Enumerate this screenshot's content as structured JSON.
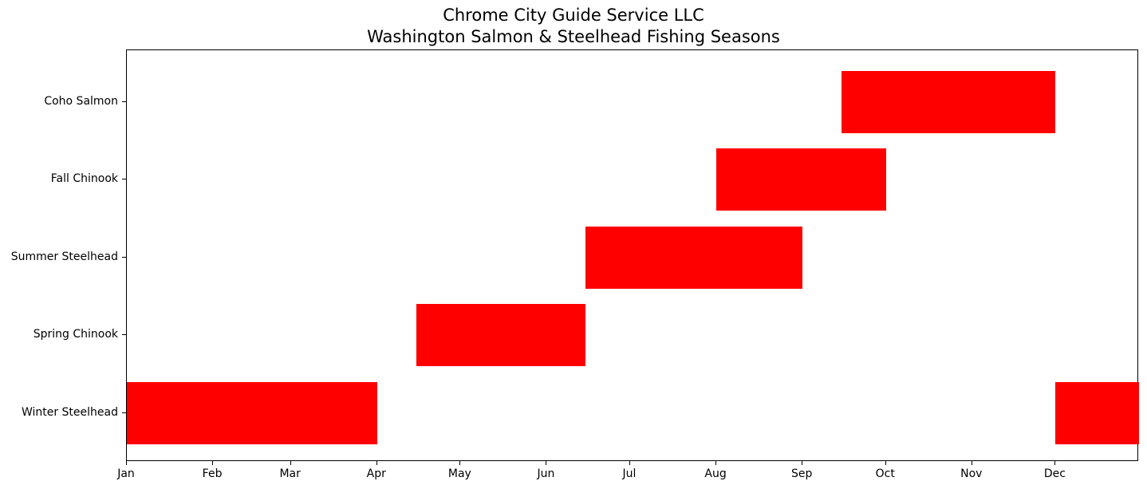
{
  "title": {
    "line1": "Chrome City Guide Service LLC",
    "line2": "Washington Salmon & Steelhead Fishing Seasons"
  },
  "chart_data": {
    "type": "bar",
    "orientation": "horizontal-gantt",
    "title": "Chrome City Guide Service LLC\nWashington Salmon & Steelhead Fishing Seasons",
    "xlabel": "",
    "ylabel": "",
    "x_unit": "day_of_year",
    "xlim": [
      0,
      364
    ],
    "grid": false,
    "legend": null,
    "bar_color": "#ff0000",
    "x_ticks": [
      {
        "label": "Jan",
        "day": 0
      },
      {
        "label": "Feb",
        "day": 31
      },
      {
        "label": "Mar",
        "day": 59
      },
      {
        "label": "Apr",
        "day": 90
      },
      {
        "label": "May",
        "day": 120
      },
      {
        "label": "Jun",
        "day": 151
      },
      {
        "label": "Jul",
        "day": 181
      },
      {
        "label": "Aug",
        "day": 212
      },
      {
        "label": "Sep",
        "day": 243
      },
      {
        "label": "Oct",
        "day": 273
      },
      {
        "label": "Nov",
        "day": 304
      },
      {
        "label": "Dec",
        "day": 334
      }
    ],
    "categories": [
      "Winter Steelhead",
      "Spring Chinook",
      "Summer Steelhead",
      "Fall Chinook",
      "Coho Salmon"
    ],
    "series": [
      {
        "name": "Winter Steelhead",
        "segments": [
          {
            "start": "Jan 1",
            "end": "Apr 1",
            "start_day": 0,
            "end_day": 90
          },
          {
            "start": "Dec 1",
            "end": "Dec 31",
            "start_day": 334,
            "end_day": 364
          }
        ]
      },
      {
        "name": "Spring Chinook",
        "segments": [
          {
            "start": "Apr 15",
            "end": "Jun 15",
            "start_day": 104,
            "end_day": 165
          }
        ]
      },
      {
        "name": "Summer Steelhead",
        "segments": [
          {
            "start": "Jun 15",
            "end": "Sep 1",
            "start_day": 165,
            "end_day": 243
          }
        ]
      },
      {
        "name": "Fall Chinook",
        "segments": [
          {
            "start": "Aug 1",
            "end": "Oct 1",
            "start_day": 212,
            "end_day": 273
          }
        ]
      },
      {
        "name": "Coho Salmon",
        "segments": [
          {
            "start": "Sep 15",
            "end": "Dec 1",
            "start_day": 257,
            "end_day": 334
          }
        ]
      }
    ]
  }
}
